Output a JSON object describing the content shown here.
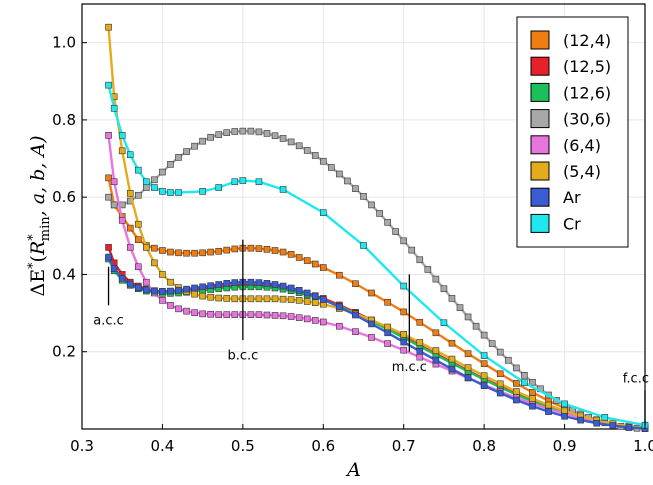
{
  "chart_data": {
    "type": "line",
    "xlabel": "A",
    "ylabel": "ΔE*(R*min, a, b, A)",
    "ylabel_parts": {
      "delta": "ΔE",
      "star": "*",
      "open": "(",
      "R": "R",
      "sub": "min",
      "rest": ", a, b, A)"
    },
    "xlim": [
      0.3,
      1.0
    ],
    "ylim": [
      0.0,
      1.1
    ],
    "x_ticks": [
      0.3,
      0.4,
      0.5,
      0.6,
      0.7,
      0.8,
      0.9,
      1.0
    ],
    "x_tick_labels": [
      "0.3",
      "0.4",
      "0.5",
      "0.6",
      "0.7",
      "0.8",
      "0.9",
      "1.0"
    ],
    "y_ticks": [
      0.2,
      0.4,
      0.6,
      0.8,
      1.0
    ],
    "y_tick_labels": [
      "0.2",
      "0.4",
      "0.6",
      "0.8",
      "1.0"
    ],
    "grid": true,
    "legend_position": "top-right",
    "annotations": [
      {
        "label": "a.c.c",
        "x": 0.333
      },
      {
        "label": "b.c.c",
        "x": 0.5
      },
      {
        "label": "m.c.c",
        "x": 0.707
      },
      {
        "label": "f.c.c",
        "x": 1.0
      }
    ],
    "series": [
      {
        "name": "(12,4)",
        "color": "#f07d12",
        "x": [
          0.333,
          0.34,
          0.35,
          0.36,
          0.37,
          0.38,
          0.39,
          0.4,
          0.41,
          0.42,
          0.43,
          0.44,
          0.45,
          0.46,
          0.47,
          0.48,
          0.49,
          0.5,
          0.51,
          0.52,
          0.53,
          0.54,
          0.55,
          0.56,
          0.57,
          0.58,
          0.59,
          0.6,
          0.62,
          0.64,
          0.66,
          0.68,
          0.7,
          0.72,
          0.74,
          0.76,
          0.78,
          0.8,
          0.82,
          0.84,
          0.86,
          0.88,
          0.9,
          0.92,
          0.94,
          0.96,
          0.98,
          1.0
        ],
        "y": [
          0.65,
          0.58,
          0.55,
          0.52,
          0.49,
          0.475,
          0.468,
          0.462,
          0.458,
          0.456,
          0.455,
          0.455,
          0.456,
          0.458,
          0.46,
          0.463,
          0.466,
          0.468,
          0.468,
          0.467,
          0.465,
          0.462,
          0.458,
          0.452,
          0.444,
          0.436,
          0.427,
          0.418,
          0.398,
          0.376,
          0.352,
          0.328,
          0.303,
          0.276,
          0.249,
          0.222,
          0.195,
          0.169,
          0.143,
          0.118,
          0.095,
          0.073,
          0.054,
          0.038,
          0.024,
          0.013,
          0.006,
          0.003
        ]
      },
      {
        "name": "(12,5)",
        "color": "#e8202a",
        "x": [
          0.333,
          0.34,
          0.35,
          0.36,
          0.37,
          0.38,
          0.39,
          0.4,
          0.41,
          0.42,
          0.43,
          0.44,
          0.45,
          0.46,
          0.47,
          0.48,
          0.49,
          0.5,
          0.51,
          0.52,
          0.53,
          0.54,
          0.55,
          0.56,
          0.57,
          0.58,
          0.59,
          0.6,
          0.62,
          0.64,
          0.66,
          0.68,
          0.7,
          0.72,
          0.74,
          0.76,
          0.78,
          0.8,
          0.82,
          0.84,
          0.86,
          0.88,
          0.9,
          0.92,
          0.94,
          0.96,
          0.98,
          1.0
        ],
        "y": [
          0.47,
          0.43,
          0.4,
          0.38,
          0.37,
          0.362,
          0.358,
          0.356,
          0.356,
          0.357,
          0.359,
          0.361,
          0.363,
          0.366,
          0.368,
          0.37,
          0.372,
          0.373,
          0.373,
          0.372,
          0.371,
          0.369,
          0.366,
          0.362,
          0.357,
          0.351,
          0.345,
          0.338,
          0.321,
          0.302,
          0.282,
          0.261,
          0.239,
          0.217,
          0.195,
          0.173,
          0.151,
          0.13,
          0.11,
          0.091,
          0.073,
          0.057,
          0.042,
          0.03,
          0.02,
          0.012,
          0.006,
          0.003
        ]
      },
      {
        "name": "(12,6)",
        "color": "#1cc05a",
        "x": [
          0.333,
          0.34,
          0.35,
          0.36,
          0.37,
          0.38,
          0.39,
          0.4,
          0.41,
          0.42,
          0.43,
          0.44,
          0.45,
          0.46,
          0.47,
          0.48,
          0.49,
          0.5,
          0.51,
          0.52,
          0.53,
          0.54,
          0.55,
          0.56,
          0.57,
          0.58,
          0.59,
          0.6,
          0.62,
          0.64,
          0.66,
          0.68,
          0.7,
          0.72,
          0.74,
          0.76,
          0.78,
          0.8,
          0.82,
          0.84,
          0.86,
          0.88,
          0.9,
          0.92,
          0.94,
          0.96,
          0.98,
          1.0
        ],
        "y": [
          0.44,
          0.41,
          0.385,
          0.372,
          0.363,
          0.357,
          0.353,
          0.351,
          0.351,
          0.352,
          0.354,
          0.356,
          0.358,
          0.361,
          0.363,
          0.365,
          0.367,
          0.368,
          0.368,
          0.368,
          0.367,
          0.365,
          0.362,
          0.358,
          0.353,
          0.347,
          0.341,
          0.334,
          0.318,
          0.299,
          0.279,
          0.258,
          0.236,
          0.214,
          0.192,
          0.17,
          0.149,
          0.128,
          0.108,
          0.089,
          0.072,
          0.056,
          0.042,
          0.03,
          0.02,
          0.012,
          0.006,
          0.003
        ]
      },
      {
        "name": "(30,6)",
        "color": "#a8a8a8",
        "x": [
          0.333,
          0.34,
          0.35,
          0.36,
          0.37,
          0.38,
          0.39,
          0.4,
          0.41,
          0.42,
          0.43,
          0.44,
          0.45,
          0.46,
          0.47,
          0.48,
          0.49,
          0.5,
          0.51,
          0.52,
          0.53,
          0.54,
          0.55,
          0.56,
          0.57,
          0.58,
          0.59,
          0.6,
          0.61,
          0.62,
          0.63,
          0.64,
          0.65,
          0.66,
          0.67,
          0.68,
          0.69,
          0.7,
          0.71,
          0.72,
          0.73,
          0.74,
          0.75,
          0.76,
          0.77,
          0.78,
          0.79,
          0.8,
          0.81,
          0.82,
          0.83,
          0.84,
          0.85,
          0.86,
          0.87,
          0.88,
          0.89,
          0.9,
          0.91,
          0.92,
          0.93,
          0.94,
          0.95,
          0.96,
          0.97,
          0.98,
          0.99,
          1.0
        ],
        "y": [
          0.6,
          0.58,
          0.58,
          0.59,
          0.605,
          0.625,
          0.645,
          0.665,
          0.685,
          0.703,
          0.718,
          0.732,
          0.745,
          0.755,
          0.762,
          0.767,
          0.77,
          0.771,
          0.771,
          0.769,
          0.765,
          0.759,
          0.752,
          0.743,
          0.733,
          0.721,
          0.708,
          0.693,
          0.677,
          0.66,
          0.642,
          0.622,
          0.602,
          0.58,
          0.558,
          0.535,
          0.511,
          0.487,
          0.463,
          0.438,
          0.413,
          0.388,
          0.363,
          0.338,
          0.314,
          0.29,
          0.266,
          0.243,
          0.221,
          0.199,
          0.178,
          0.158,
          0.139,
          0.121,
          0.104,
          0.088,
          0.074,
          0.061,
          0.049,
          0.039,
          0.03,
          0.022,
          0.016,
          0.011,
          0.007,
          0.004,
          0.002,
          0.001
        ]
      },
      {
        "name": "(6,4)",
        "color": "#e874dd",
        "x": [
          0.333,
          0.34,
          0.35,
          0.36,
          0.37,
          0.38,
          0.39,
          0.4,
          0.41,
          0.42,
          0.43,
          0.44,
          0.45,
          0.46,
          0.47,
          0.48,
          0.49,
          0.5,
          0.51,
          0.52,
          0.53,
          0.54,
          0.55,
          0.56,
          0.57,
          0.58,
          0.59,
          0.6,
          0.62,
          0.64,
          0.66,
          0.68,
          0.7,
          0.72,
          0.74,
          0.76,
          0.78,
          0.8,
          0.82,
          0.84,
          0.86,
          0.88,
          0.9,
          0.92,
          0.94,
          0.96,
          0.98,
          1.0
        ],
        "y": [
          0.76,
          0.64,
          0.54,
          0.47,
          0.42,
          0.38,
          0.352,
          0.333,
          0.32,
          0.311,
          0.305,
          0.301,
          0.298,
          0.297,
          0.296,
          0.296,
          0.296,
          0.296,
          0.296,
          0.296,
          0.295,
          0.294,
          0.293,
          0.291,
          0.288,
          0.285,
          0.281,
          0.277,
          0.266,
          0.252,
          0.237,
          0.221,
          0.204,
          0.186,
          0.168,
          0.15,
          0.132,
          0.114,
          0.097,
          0.081,
          0.066,
          0.052,
          0.04,
          0.029,
          0.02,
          0.012,
          0.006,
          0.003
        ]
      },
      {
        "name": "(5,4)",
        "color": "#e3ac1c",
        "x": [
          0.333,
          0.34,
          0.35,
          0.36,
          0.37,
          0.38,
          0.39,
          0.4,
          0.41,
          0.42,
          0.43,
          0.44,
          0.45,
          0.46,
          0.47,
          0.48,
          0.49,
          0.5,
          0.51,
          0.52,
          0.53,
          0.54,
          0.55,
          0.56,
          0.57,
          0.58,
          0.59,
          0.6,
          0.62,
          0.64,
          0.66,
          0.68,
          0.7,
          0.72,
          0.74,
          0.76,
          0.78,
          0.8,
          0.82,
          0.84,
          0.86,
          0.88,
          0.9,
          0.92,
          0.94,
          0.96,
          0.98,
          1.0
        ],
        "y": [
          1.04,
          0.86,
          0.72,
          0.61,
          0.53,
          0.47,
          0.43,
          0.4,
          0.38,
          0.366,
          0.356,
          0.349,
          0.344,
          0.341,
          0.339,
          0.338,
          0.337,
          0.337,
          0.337,
          0.337,
          0.337,
          0.337,
          0.336,
          0.335,
          0.333,
          0.33,
          0.327,
          0.323,
          0.312,
          0.298,
          0.282,
          0.264,
          0.245,
          0.224,
          0.203,
          0.181,
          0.159,
          0.138,
          0.117,
          0.097,
          0.079,
          0.062,
          0.047,
          0.034,
          0.023,
          0.014,
          0.007,
          0.003
        ]
      },
      {
        "name": "Ar",
        "color": "#3a5bd2",
        "x": [
          0.333,
          0.34,
          0.35,
          0.36,
          0.37,
          0.38,
          0.39,
          0.4,
          0.41,
          0.42,
          0.43,
          0.44,
          0.45,
          0.46,
          0.47,
          0.48,
          0.49,
          0.5,
          0.51,
          0.52,
          0.53,
          0.54,
          0.55,
          0.56,
          0.57,
          0.58,
          0.59,
          0.6,
          0.62,
          0.64,
          0.66,
          0.68,
          0.7,
          0.72,
          0.74,
          0.76,
          0.78,
          0.8,
          0.82,
          0.84,
          0.86,
          0.88,
          0.9,
          0.92,
          0.94,
          0.96,
          0.98,
          1.0
        ],
        "y": [
          0.445,
          0.415,
          0.39,
          0.375,
          0.366,
          0.36,
          0.357,
          0.356,
          0.357,
          0.359,
          0.362,
          0.365,
          0.368,
          0.371,
          0.374,
          0.377,
          0.379,
          0.38,
          0.38,
          0.379,
          0.377,
          0.374,
          0.37,
          0.365,
          0.359,
          0.352,
          0.344,
          0.335,
          0.316,
          0.295,
          0.272,
          0.249,
          0.225,
          0.201,
          0.178,
          0.155,
          0.133,
          0.112,
          0.093,
          0.075,
          0.059,
          0.045,
          0.033,
          0.023,
          0.015,
          0.009,
          0.004,
          0.002
        ]
      },
      {
        "name": "Cr",
        "color": "#1ee8ee",
        "x": [
          0.333,
          0.34,
          0.35,
          0.36,
          0.37,
          0.38,
          0.39,
          0.4,
          0.41,
          0.42,
          0.45,
          0.47,
          0.49,
          0.5,
          0.52,
          0.55,
          0.6,
          0.65,
          0.7,
          0.75,
          0.8,
          0.85,
          0.9,
          0.95,
          1.0
        ],
        "y": [
          0.89,
          0.83,
          0.76,
          0.71,
          0.67,
          0.64,
          0.625,
          0.615,
          0.612,
          0.612,
          0.615,
          0.625,
          0.64,
          0.643,
          0.64,
          0.62,
          0.56,
          0.475,
          0.37,
          0.275,
          0.19,
          0.12,
          0.065,
          0.03,
          0.01
        ]
      }
    ]
  }
}
